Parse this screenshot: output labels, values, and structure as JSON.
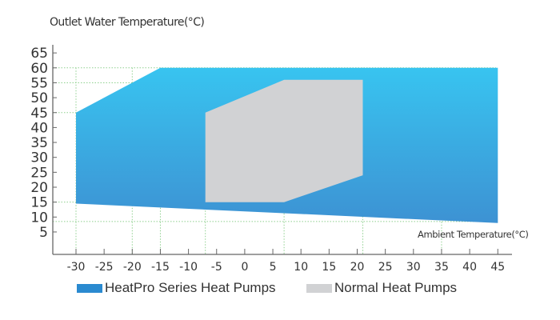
{
  "chart_data": {
    "type": "area",
    "ylabel": "Outlet Water Temperature(°C)",
    "xlabel": "Ambient Temperature(°C)",
    "xlim": [
      -35,
      47
    ],
    "ylim": [
      -2,
      67
    ],
    "x_ticks": [
      -30,
      -25,
      -20,
      -15,
      -10,
      -5,
      0,
      5,
      10,
      15,
      20,
      25,
      30,
      35,
      40,
      45
    ],
    "y_ticks": [
      5,
      10,
      15,
      20,
      25,
      30,
      35,
      40,
      45,
      50,
      55,
      60,
      65
    ],
    "grid": "partial dotted reference lines",
    "ref_x": [
      -30,
      -20,
      -15,
      -7,
      7,
      21,
      35
    ],
    "ref_y": [
      60,
      55,
      45,
      15,
      8.5
    ],
    "legend_position": "bottom",
    "series": [
      {
        "name": "HeatPro Series Heat Pumps",
        "color_top": "#38c4f0",
        "color_bottom": "#3d92d3",
        "polygon": [
          [
            -30,
            45
          ],
          [
            -15,
            60
          ],
          [
            45,
            60
          ],
          [
            45,
            8
          ],
          [
            -30,
            14.5
          ]
        ]
      },
      {
        "name": "Normal Heat Pumps",
        "color": "#d1d2d4",
        "polygon": [
          [
            -7,
            45
          ],
          [
            7,
            56
          ],
          [
            21,
            56
          ],
          [
            21,
            24
          ],
          [
            7,
            15
          ],
          [
            -7,
            15
          ]
        ]
      }
    ]
  },
  "legend": {
    "items": [
      {
        "label": "HeatPro Series Heat Pumps",
        "color": "#2a8ad0"
      },
      {
        "label": "Normal Heat Pumps",
        "color": "#d1d2d4"
      }
    ]
  }
}
